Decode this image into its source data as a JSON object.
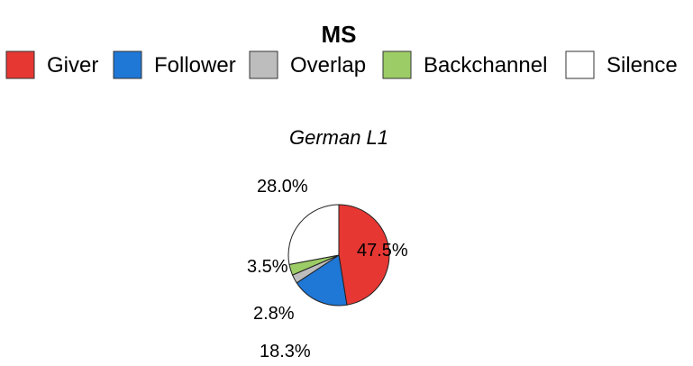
{
  "chart_data": {
    "type": "pie",
    "title": "MS",
    "subtitle": "German L1",
    "legend": "top",
    "series": [
      {
        "name": "Giver",
        "value": 47.5,
        "label": "47.5%",
        "color": "#e63733"
      },
      {
        "name": "Follower",
        "value": 18.3,
        "label": "18.3%",
        "color": "#1f77d6"
      },
      {
        "name": "Overlap",
        "value": 2.8,
        "label": "2.8%",
        "color": "#bdbdbd"
      },
      {
        "name": "Backchannel",
        "value": 3.5,
        "label": "3.5%",
        "color": "#9ccc65"
      },
      {
        "name": "Silence",
        "value": 28.0,
        "label": "28.0%",
        "color": "#ffffff"
      }
    ]
  }
}
